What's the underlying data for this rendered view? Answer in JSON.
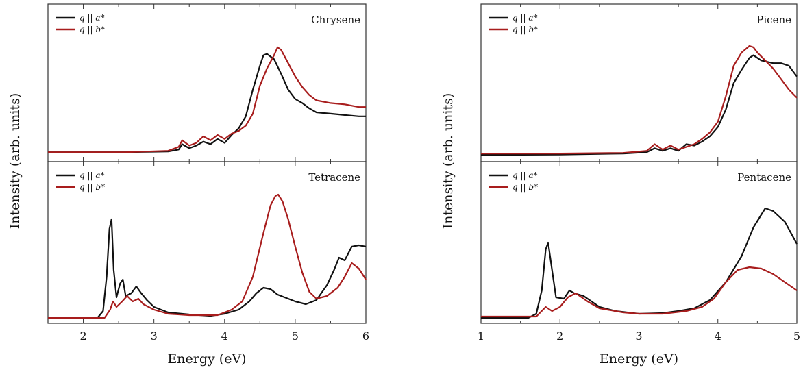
{
  "colors": {
    "a_star": "#111111",
    "b_star": "#a81d1d",
    "frame": "#333333"
  },
  "chart_data": [
    {
      "type": "line",
      "title": "Chrysene",
      "x_axis": "left",
      "xlim": [
        1.5,
        6.0
      ],
      "ylim": [
        0,
        1.0
      ],
      "legend": "top-left",
      "series": [
        {
          "name": "q || a*",
          "color": "#111111",
          "points": [
            [
              1.5,
              0.03
            ],
            [
              2.6,
              0.03
            ],
            [
              3.2,
              0.035
            ],
            [
              3.35,
              0.05
            ],
            [
              3.4,
              0.09
            ],
            [
              3.5,
              0.06
            ],
            [
              3.6,
              0.08
            ],
            [
              3.7,
              0.11
            ],
            [
              3.8,
              0.09
            ],
            [
              3.9,
              0.13
            ],
            [
              4.0,
              0.1
            ],
            [
              4.1,
              0.16
            ],
            [
              4.2,
              0.21
            ],
            [
              4.3,
              0.3
            ],
            [
              4.4,
              0.5
            ],
            [
              4.5,
              0.68
            ],
            [
              4.55,
              0.76
            ],
            [
              4.6,
              0.77
            ],
            [
              4.7,
              0.73
            ],
            [
              4.8,
              0.62
            ],
            [
              4.9,
              0.5
            ],
            [
              5.0,
              0.43
            ],
            [
              5.1,
              0.4
            ],
            [
              5.2,
              0.36
            ],
            [
              5.3,
              0.33
            ],
            [
              5.5,
              0.32
            ],
            [
              5.7,
              0.31
            ],
            [
              5.9,
              0.3
            ],
            [
              6.0,
              0.3
            ]
          ]
        },
        {
          "name": "q || b*",
          "color": "#a81d1d",
          "points": [
            [
              1.5,
              0.03
            ],
            [
              2.6,
              0.03
            ],
            [
              3.2,
              0.04
            ],
            [
              3.35,
              0.07
            ],
            [
              3.4,
              0.12
            ],
            [
              3.5,
              0.08
            ],
            [
              3.6,
              0.1
            ],
            [
              3.7,
              0.15
            ],
            [
              3.8,
              0.12
            ],
            [
              3.9,
              0.16
            ],
            [
              4.0,
              0.13
            ],
            [
              4.1,
              0.17
            ],
            [
              4.2,
              0.19
            ],
            [
              4.3,
              0.23
            ],
            [
              4.4,
              0.32
            ],
            [
              4.5,
              0.53
            ],
            [
              4.6,
              0.66
            ],
            [
              4.7,
              0.76
            ],
            [
              4.75,
              0.82
            ],
            [
              4.8,
              0.8
            ],
            [
              4.9,
              0.7
            ],
            [
              5.0,
              0.6
            ],
            [
              5.1,
              0.52
            ],
            [
              5.2,
              0.46
            ],
            [
              5.3,
              0.42
            ],
            [
              5.5,
              0.4
            ],
            [
              5.7,
              0.39
            ],
            [
              5.9,
              0.37
            ],
            [
              6.0,
              0.37
            ]
          ]
        }
      ]
    },
    {
      "type": "line",
      "title": "Tetracene",
      "x_axis": "left",
      "xlim": [
        1.5,
        6.0
      ],
      "ylim": [
        0,
        1.0
      ],
      "legend": "top-left",
      "xlabel": "Energy  (eV)",
      "x_ticks": [
        2,
        3,
        4,
        5,
        6
      ],
      "series": [
        {
          "name": "q || a*",
          "color": "#111111",
          "points": [
            [
              1.5,
              0.0
            ],
            [
              2.2,
              0.0
            ],
            [
              2.28,
              0.05
            ],
            [
              2.33,
              0.3
            ],
            [
              2.37,
              0.65
            ],
            [
              2.4,
              0.72
            ],
            [
              2.43,
              0.35
            ],
            [
              2.47,
              0.15
            ],
            [
              2.52,
              0.25
            ],
            [
              2.56,
              0.28
            ],
            [
              2.6,
              0.16
            ],
            [
              2.68,
              0.18
            ],
            [
              2.75,
              0.23
            ],
            [
              2.82,
              0.18
            ],
            [
              2.9,
              0.13
            ],
            [
              3.0,
              0.08
            ],
            [
              3.2,
              0.04
            ],
            [
              3.5,
              0.025
            ],
            [
              3.8,
              0.015
            ],
            [
              4.0,
              0.03
            ],
            [
              4.2,
              0.06
            ],
            [
              4.35,
              0.12
            ],
            [
              4.45,
              0.18
            ],
            [
              4.55,
              0.22
            ],
            [
              4.65,
              0.21
            ],
            [
              4.75,
              0.17
            ],
            [
              4.9,
              0.14
            ],
            [
              5.0,
              0.12
            ],
            [
              5.15,
              0.1
            ],
            [
              5.3,
              0.13
            ],
            [
              5.45,
              0.24
            ],
            [
              5.55,
              0.35
            ],
            [
              5.62,
              0.44
            ],
            [
              5.7,
              0.42
            ],
            [
              5.8,
              0.52
            ],
            [
              5.9,
              0.53
            ],
            [
              6.0,
              0.52
            ]
          ]
        },
        {
          "name": "q || b*",
          "color": "#a81d1d",
          "points": [
            [
              1.5,
              0.0
            ],
            [
              2.3,
              0.0
            ],
            [
              2.38,
              0.06
            ],
            [
              2.42,
              0.12
            ],
            [
              2.47,
              0.08
            ],
            [
              2.55,
              0.12
            ],
            [
              2.62,
              0.16
            ],
            [
              2.7,
              0.12
            ],
            [
              2.78,
              0.14
            ],
            [
              2.85,
              0.1
            ],
            [
              3.0,
              0.06
            ],
            [
              3.2,
              0.03
            ],
            [
              3.5,
              0.02
            ],
            [
              3.9,
              0.02
            ],
            [
              4.1,
              0.06
            ],
            [
              4.25,
              0.12
            ],
            [
              4.4,
              0.3
            ],
            [
              4.55,
              0.62
            ],
            [
              4.65,
              0.82
            ],
            [
              4.72,
              0.89
            ],
            [
              4.76,
              0.9
            ],
            [
              4.82,
              0.85
            ],
            [
              4.9,
              0.72
            ],
            [
              5.0,
              0.52
            ],
            [
              5.1,
              0.33
            ],
            [
              5.2,
              0.19
            ],
            [
              5.3,
              0.14
            ],
            [
              5.45,
              0.16
            ],
            [
              5.6,
              0.22
            ],
            [
              5.7,
              0.3
            ],
            [
              5.8,
              0.4
            ],
            [
              5.9,
              0.36
            ],
            [
              6.0,
              0.28
            ]
          ]
        }
      ]
    },
    {
      "type": "line",
      "title": "Picene",
      "x_axis": "right",
      "xlim": [
        1.0,
        5.0
      ],
      "ylim": [
        0,
        1.0
      ],
      "legend": "top-left",
      "series": [
        {
          "name": "q || a*",
          "color": "#111111",
          "points": [
            [
              1.0,
              0.01
            ],
            [
              2.0,
              0.012
            ],
            [
              2.8,
              0.02
            ],
            [
              3.1,
              0.03
            ],
            [
              3.2,
              0.06
            ],
            [
              3.3,
              0.04
            ],
            [
              3.4,
              0.06
            ],
            [
              3.5,
              0.04
            ],
            [
              3.6,
              0.09
            ],
            [
              3.7,
              0.08
            ],
            [
              3.8,
              0.11
            ],
            [
              3.9,
              0.15
            ],
            [
              4.0,
              0.22
            ],
            [
              4.1,
              0.35
            ],
            [
              4.2,
              0.55
            ],
            [
              4.3,
              0.65
            ],
            [
              4.4,
              0.74
            ],
            [
              4.45,
              0.76
            ],
            [
              4.55,
              0.72
            ],
            [
              4.7,
              0.7
            ],
            [
              4.8,
              0.7
            ],
            [
              4.9,
              0.68
            ],
            [
              5.0,
              0.6
            ]
          ]
        },
        {
          "name": "q || b*",
          "color": "#a81d1d",
          "points": [
            [
              1.0,
              0.02
            ],
            [
              2.0,
              0.02
            ],
            [
              2.8,
              0.025
            ],
            [
              3.1,
              0.04
            ],
            [
              3.2,
              0.09
            ],
            [
              3.3,
              0.05
            ],
            [
              3.4,
              0.08
            ],
            [
              3.5,
              0.05
            ],
            [
              3.6,
              0.07
            ],
            [
              3.7,
              0.09
            ],
            [
              3.8,
              0.13
            ],
            [
              3.9,
              0.18
            ],
            [
              4.0,
              0.26
            ],
            [
              4.1,
              0.45
            ],
            [
              4.2,
              0.68
            ],
            [
              4.3,
              0.78
            ],
            [
              4.4,
              0.83
            ],
            [
              4.45,
              0.82
            ],
            [
              4.5,
              0.78
            ],
            [
              4.6,
              0.72
            ],
            [
              4.7,
              0.66
            ],
            [
              4.8,
              0.58
            ],
            [
              4.9,
              0.5
            ],
            [
              5.0,
              0.44
            ]
          ]
        }
      ]
    },
    {
      "type": "line",
      "title": "Pentacene",
      "x_axis": "right",
      "xlim": [
        1.0,
        5.0
      ],
      "ylim": [
        0,
        1.0
      ],
      "legend": "top-left",
      "xlabel": "Energy  (eV)",
      "x_ticks": [
        1,
        2,
        3,
        4,
        5
      ],
      "series": [
        {
          "name": "q || a*",
          "color": "#111111",
          "points": [
            [
              1.0,
              0.0
            ],
            [
              1.6,
              0.0
            ],
            [
              1.7,
              0.03
            ],
            [
              1.77,
              0.2
            ],
            [
              1.82,
              0.5
            ],
            [
              1.85,
              0.55
            ],
            [
              1.9,
              0.35
            ],
            [
              1.95,
              0.15
            ],
            [
              2.05,
              0.14
            ],
            [
              2.12,
              0.2
            ],
            [
              2.18,
              0.18
            ],
            [
              2.3,
              0.16
            ],
            [
              2.5,
              0.08
            ],
            [
              2.7,
              0.05
            ],
            [
              3.0,
              0.03
            ],
            [
              3.3,
              0.035
            ],
            [
              3.5,
              0.05
            ],
            [
              3.7,
              0.07
            ],
            [
              3.9,
              0.13
            ],
            [
              4.1,
              0.26
            ],
            [
              4.3,
              0.45
            ],
            [
              4.45,
              0.66
            ],
            [
              4.6,
              0.8
            ],
            [
              4.7,
              0.78
            ],
            [
              4.85,
              0.7
            ],
            [
              5.0,
              0.54
            ]
          ]
        },
        {
          "name": "q || b*",
          "color": "#a81d1d",
          "points": [
            [
              1.0,
              0.01
            ],
            [
              1.7,
              0.01
            ],
            [
              1.82,
              0.08
            ],
            [
              1.9,
              0.05
            ],
            [
              2.0,
              0.08
            ],
            [
              2.1,
              0.15
            ],
            [
              2.2,
              0.18
            ],
            [
              2.35,
              0.12
            ],
            [
              2.5,
              0.07
            ],
            [
              2.8,
              0.04
            ],
            [
              3.0,
              0.03
            ],
            [
              3.3,
              0.03
            ],
            [
              3.6,
              0.05
            ],
            [
              3.8,
              0.08
            ],
            [
              3.95,
              0.14
            ],
            [
              4.1,
              0.26
            ],
            [
              4.25,
              0.35
            ],
            [
              4.4,
              0.37
            ],
            [
              4.55,
              0.36
            ],
            [
              4.7,
              0.32
            ],
            [
              4.85,
              0.26
            ],
            [
              5.0,
              0.2
            ]
          ]
        }
      ]
    }
  ],
  "y_axis_label_left": "Intensity  (arb. units)",
  "y_axis_label_right": "Intensity  (arb. units)",
  "legend_labels": {
    "a_star": "q || a*",
    "b_star": "q || b*"
  }
}
